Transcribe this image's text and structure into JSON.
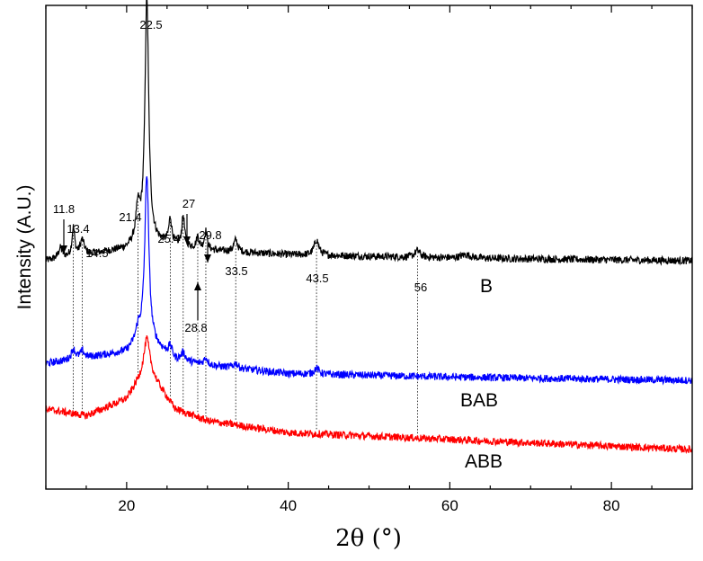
{
  "chart_data": {
    "type": "line",
    "title": "",
    "xlabel": "2θ (°)",
    "ylabel": "Intensity (A.U.)",
    "xlim": [
      10,
      90
    ],
    "x_ticks": [
      20,
      40,
      60,
      80
    ],
    "y_ticks_shown": false,
    "grid": false,
    "series": [
      {
        "name": "B",
        "color": "#000000",
        "baseline": 5.6,
        "background": [
          [
            10,
            0.0
          ],
          [
            20,
            0.35
          ],
          [
            22,
            0.6
          ],
          [
            30,
            0.3
          ],
          [
            40,
            0.18
          ],
          [
            60,
            0.08
          ],
          [
            90,
            0.0
          ]
        ],
        "peaks": [
          {
            "x": 11.8,
            "h": 0.3,
            "w": 0.3
          },
          {
            "x": 13.4,
            "h": 0.85,
            "w": 0.2
          },
          {
            "x": 14.5,
            "h": 0.45,
            "w": 0.3
          },
          {
            "x": 21.4,
            "h": 0.95,
            "w": 0.3
          },
          {
            "x": 22.5,
            "h": 7.2,
            "w": 0.28
          },
          {
            "x": 25.4,
            "h": 0.75,
            "w": 0.22
          },
          {
            "x": 27.0,
            "h": 0.9,
            "w": 0.2
          },
          {
            "x": 28.8,
            "h": 0.35,
            "w": 0.2
          },
          {
            "x": 29.8,
            "h": 0.55,
            "w": 0.22
          },
          {
            "x": 33.5,
            "h": 0.35,
            "w": 0.3
          },
          {
            "x": 43.5,
            "h": 0.45,
            "w": 0.35
          },
          {
            "x": 56.0,
            "h": 0.2,
            "w": 0.4
          },
          {
            "x": 62.0,
            "h": 0.1,
            "w": 0.8
          }
        ]
      },
      {
        "name": "BAB",
        "color": "#0000ff",
        "baseline": 2.05,
        "background": [
          [
            10,
            0.5
          ],
          [
            20,
            0.85
          ],
          [
            22,
            1.3
          ],
          [
            26,
            0.6
          ],
          [
            30,
            0.45
          ],
          [
            40,
            0.2
          ],
          [
            60,
            0.1
          ],
          [
            90,
            0.0
          ]
        ],
        "peaks": [
          {
            "x": 13.4,
            "h": 0.3,
            "w": 0.3
          },
          {
            "x": 14.5,
            "h": 0.2,
            "w": 0.3
          },
          {
            "x": 21.4,
            "h": 0.3,
            "w": 0.3
          },
          {
            "x": 22.5,
            "h": 4.9,
            "w": 0.3
          },
          {
            "x": 25.4,
            "h": 0.3,
            "w": 0.3
          },
          {
            "x": 27.0,
            "h": 0.25,
            "w": 0.3
          },
          {
            "x": 29.8,
            "h": 0.2,
            "w": 0.3
          },
          {
            "x": 33.5,
            "h": 0.15,
            "w": 0.3
          },
          {
            "x": 43.5,
            "h": 0.18,
            "w": 0.35
          }
        ]
      },
      {
        "name": "ABB",
        "color": "#ff0000",
        "baseline": 0.0,
        "background": [
          [
            10,
            1.2
          ],
          [
            15,
            1.0
          ],
          [
            20,
            1.5
          ],
          [
            22.5,
            2.4
          ],
          [
            26,
            1.2
          ],
          [
            30,
            0.85
          ],
          [
            40,
            0.5
          ],
          [
            60,
            0.3
          ],
          [
            90,
            0.0
          ]
        ],
        "peaks": [
          {
            "x": 22.5,
            "h": 0.9,
            "w": 0.45
          }
        ]
      }
    ],
    "peak_labels": [
      {
        "text": "11.8",
        "x": 11.8,
        "arrow": true
      },
      {
        "text": "13.4",
        "x": 13.4,
        "arrow": false
      },
      {
        "text": "14.5",
        "x": 14.5,
        "arrow": false
      },
      {
        "text": "21.4",
        "x": 21.4,
        "arrow": false
      },
      {
        "text": "22.5",
        "x": 22.5,
        "arrow": false
      },
      {
        "text": "25.4",
        "x": 25.4,
        "arrow": false
      },
      {
        "text": "27",
        "x": 27.0,
        "arrow": true
      },
      {
        "text": "28.8",
        "x": 28.8,
        "arrow": true
      },
      {
        "text": "29.8",
        "x": 29.8,
        "arrow": true
      },
      {
        "text": "33.5",
        "x": 33.5,
        "arrow": false
      },
      {
        "text": "43.5",
        "x": 43.5,
        "arrow": false
      },
      {
        "text": "56",
        "x": 56.0,
        "arrow": false
      }
    ],
    "reference_lines_x": [
      13.4,
      14.5,
      21.4,
      25.4,
      27.0,
      28.8,
      29.8,
      33.5,
      43.5,
      56.0
    ]
  }
}
